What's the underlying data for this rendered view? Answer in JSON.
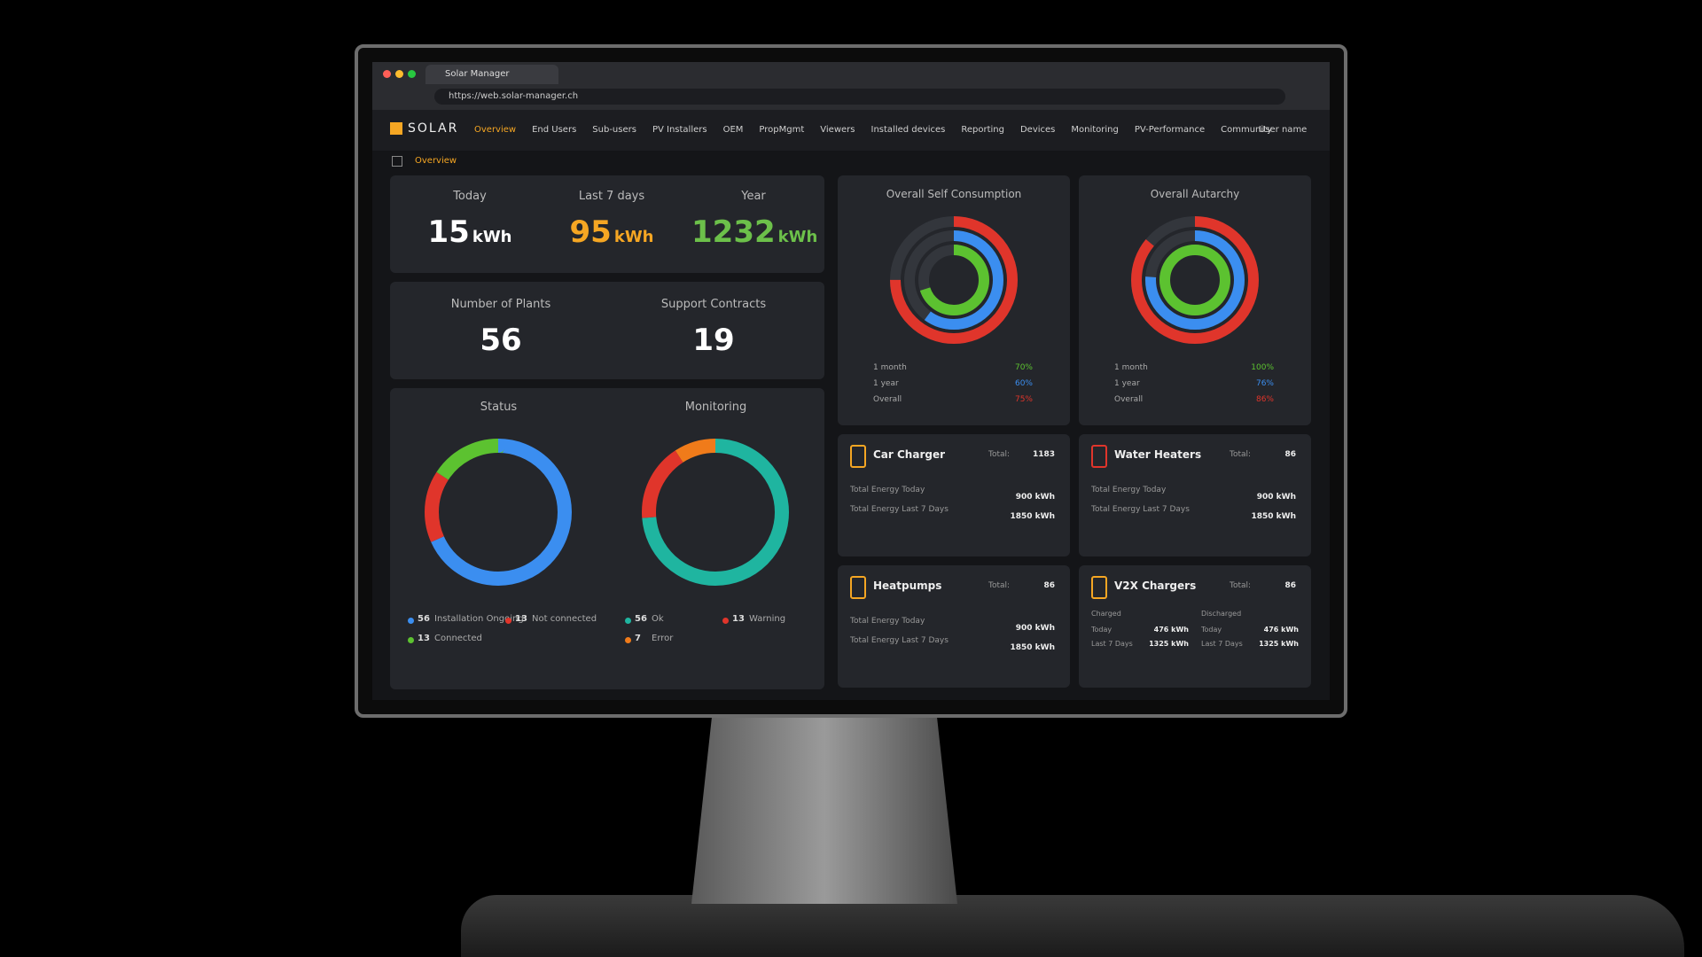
{
  "browser": {
    "tab": "Solar Manager",
    "url": "https://web.solar-manager.ch"
  },
  "nav": {
    "logo": "SOLAR",
    "items": [
      "Overview",
      "End Users",
      "Sub-users",
      "PV Installers",
      "OEM",
      "PropMgmt",
      "Viewers",
      "Installed devices",
      "Reporting",
      "Devices",
      "Monitoring",
      "PV-Performance",
      "Community"
    ],
    "user": "User name"
  },
  "breadcrumb": "Overview",
  "energy": [
    {
      "label": "Today",
      "value": 15,
      "unit": "kWh",
      "color": "#ffffff"
    },
    {
      "label": "Last 7 days",
      "value": 95,
      "unit": "kWh",
      "color": "#f5a623"
    },
    {
      "label": "Year",
      "value": 1232,
      "unit": "kWh",
      "color": "#6cc04a"
    }
  ],
  "counts": [
    {
      "label": "Number of Plants",
      "value": 56
    },
    {
      "label": "Support Contracts",
      "value": 19
    }
  ],
  "donuts": [
    {
      "title": "Status",
      "items": [
        {
          "count": 56,
          "label": "Installation Ongoing",
          "color": "#3b8ef0"
        },
        {
          "count": 13,
          "label": "Not connected",
          "color": "#e0352b"
        },
        {
          "count": 13,
          "label": "Connected",
          "color": "#5cc230"
        }
      ]
    },
    {
      "title": "Monitoring",
      "items": [
        {
          "count": 56,
          "label": "Ok",
          "color": "#1fb5a0"
        },
        {
          "count": 13,
          "label": "Warning",
          "color": "#e0352b"
        },
        {
          "count": 7,
          "label": "Error",
          "color": "#f07b1a"
        }
      ]
    }
  ],
  "rings": [
    {
      "title": "Overall Self Consumption",
      "items": [
        {
          "label": "1 month",
          "value": 70,
          "value_label": "70%",
          "color": "#5cc230"
        },
        {
          "label": "1 year",
          "value": 60,
          "value_label": "60%",
          "color": "#3b8ef0"
        },
        {
          "label": "Overall",
          "value": 75,
          "value_label": "75%",
          "color": "#e0352b"
        }
      ]
    },
    {
      "title": "Overall Autarchy",
      "items": [
        {
          "label": "1 month",
          "value": 100,
          "value_label": "100%",
          "color": "#5cc230"
        },
        {
          "label": "1 year",
          "value": 76,
          "value_label": "76%",
          "color": "#3b8ef0"
        },
        {
          "label": "Overall",
          "value": 86,
          "value_label": "86%",
          "color": "#e0352b"
        }
      ]
    }
  ],
  "devices": [
    {
      "name": "Car Charger",
      "total_label": "Total:",
      "total": 1183,
      "rows": [
        {
          "label": "Total Energy Today",
          "value": "900 kWh"
        },
        {
          "label": "Total Energy Last 7 Days",
          "value": "1850 kWh"
        }
      ]
    },
    {
      "name": "Water Heaters",
      "total_label": "Total:",
      "total": 86,
      "rows": [
        {
          "label": "Total Energy Today",
          "value": "900 kWh"
        },
        {
          "label": "Total Energy Last 7 Days",
          "value": "1850 kWh"
        }
      ]
    },
    {
      "name": "Heatpumps",
      "total_label": "Total:",
      "total": 86,
      "rows": [
        {
          "label": "Total Energy Today",
          "value": "900 kWh"
        },
        {
          "label": "Total Energy Last 7 Days",
          "value": "1850 kWh"
        }
      ]
    },
    {
      "name": "V2X Chargers",
      "total_label": "Total:",
      "total": 86,
      "groups": [
        {
          "title": "Charged",
          "rows": [
            {
              "label": "Today",
              "value": "476 kWh"
            },
            {
              "label": "Last 7 Days",
              "value": "1325 kWh"
            }
          ]
        },
        {
          "title": "Discharged",
          "rows": [
            {
              "label": "Today",
              "value": "476 kWh"
            },
            {
              "label": "Last 7 Days",
              "value": "1325 kWh"
            }
          ]
        }
      ]
    }
  ]
}
